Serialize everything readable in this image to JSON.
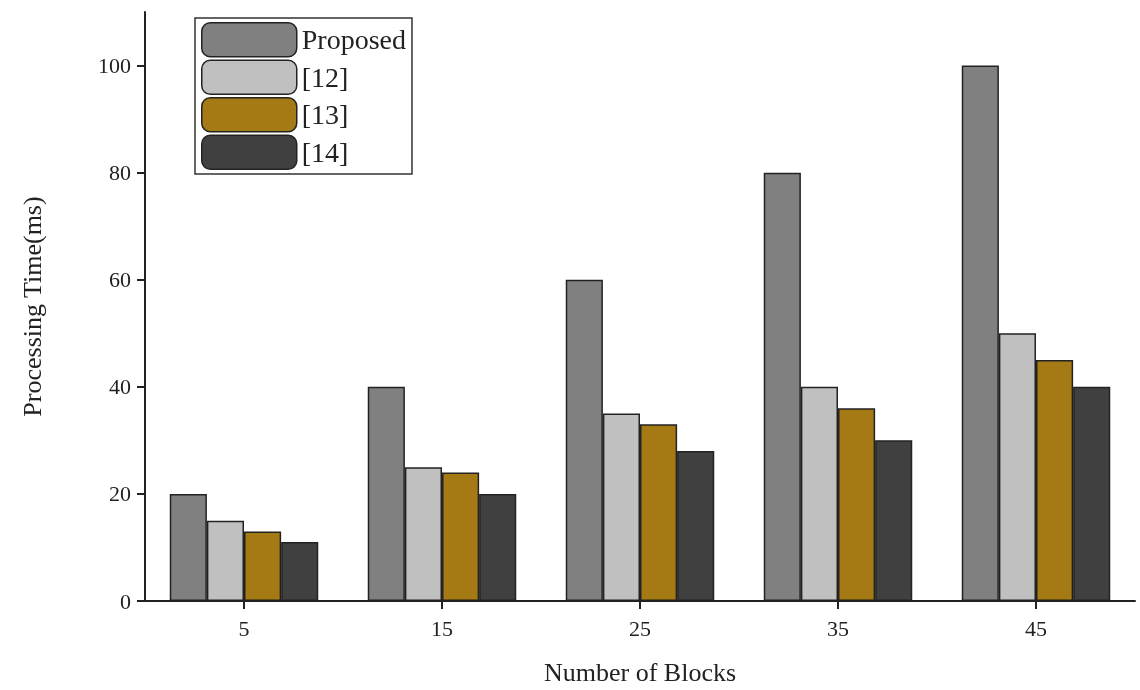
{
  "chart_data": {
    "type": "bar",
    "xlabel": "Number of Blocks",
    "ylabel": "Processing Time(ms)",
    "categories": [
      "5",
      "15",
      "25",
      "35",
      "45"
    ],
    "series": [
      {
        "name": "Proposed",
        "color": "#808080",
        "values": [
          20,
          40,
          60,
          80,
          100
        ]
      },
      {
        "name": "[12]",
        "color": "#c0c0c0",
        "values": [
          15,
          25,
          35,
          40,
          50
        ]
      },
      {
        "name": "[13]",
        "color": "#a57a15",
        "values": [
          13,
          24,
          33,
          36,
          45
        ]
      },
      {
        "name": "[14]",
        "color": "#404040",
        "values": [
          11,
          20,
          28,
          30,
          40
        ]
      }
    ],
    "ylim": [
      0,
      110
    ],
    "yticks": [
      0,
      20,
      40,
      60,
      80,
      100
    ],
    "grid": false,
    "legend": "top left"
  }
}
